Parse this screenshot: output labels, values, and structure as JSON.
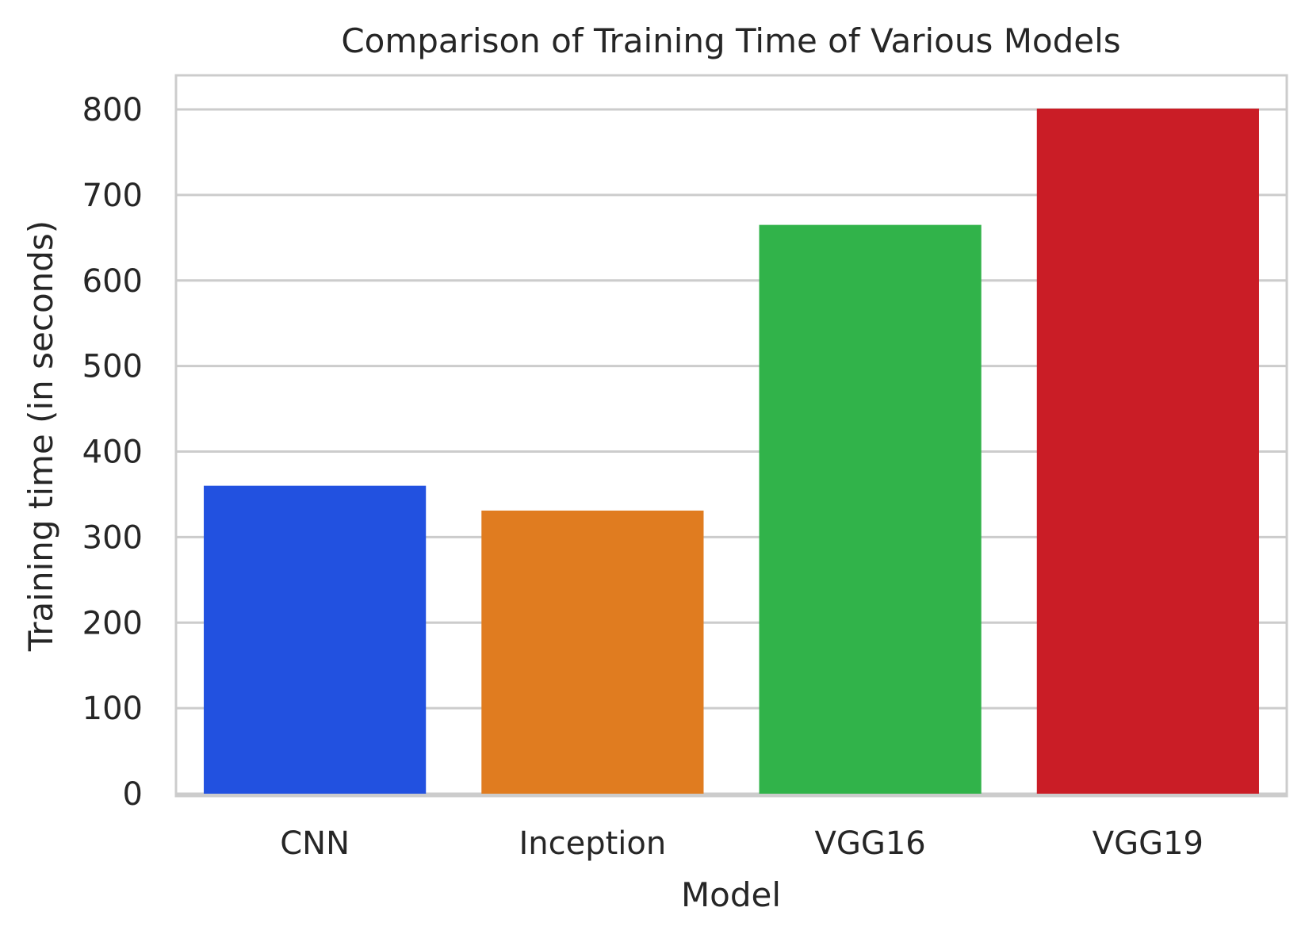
{
  "chart_data": {
    "type": "bar",
    "title": "Comparison of Training Time of Various Models",
    "xlabel": "Model",
    "ylabel": "Training time (in seconds)",
    "categories": [
      "CNN",
      "Inception",
      "VGG16",
      "VGG19"
    ],
    "values": [
      360,
      331,
      665,
      801
    ],
    "colors": [
      "#2251e0",
      "#e07c20",
      "#31b34a",
      "#ca1d26"
    ],
    "ylim": [
      0,
      840
    ],
    "yticks": [
      "0",
      "100",
      "200",
      "300",
      "400",
      "500",
      "600",
      "700",
      "800"
    ],
    "grid": true,
    "grid_color": "#cccccc",
    "frame_color": "#cccccc",
    "legend": "none"
  }
}
